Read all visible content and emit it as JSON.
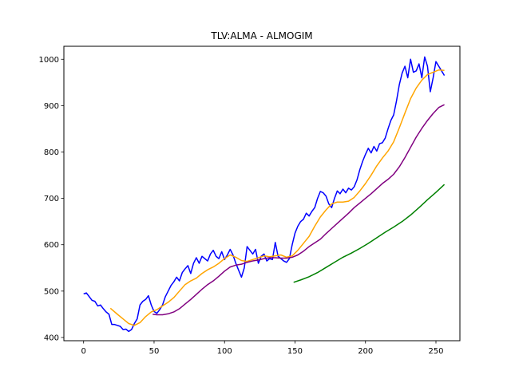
{
  "chart_data": {
    "type": "line",
    "title": "TLV:ALMA - ALMOGIM",
    "xlabel": "",
    "ylabel": "",
    "xlim": [
      -14,
      267
    ],
    "ylim": [
      393,
      1028
    ],
    "xticks": [
      0,
      50,
      100,
      150,
      200,
      250
    ],
    "yticks": [
      400,
      500,
      600,
      700,
      800,
      900,
      1000
    ],
    "grid": false,
    "legend": "none",
    "series": [
      {
        "color": "#0000ff",
        "points": [
          [
            0,
            494
          ],
          [
            2,
            496
          ],
          [
            4,
            488
          ],
          [
            6,
            480
          ],
          [
            8,
            478
          ],
          [
            10,
            468
          ],
          [
            12,
            470
          ],
          [
            14,
            462
          ],
          [
            16,
            455
          ],
          [
            18,
            450
          ],
          [
            20,
            428
          ],
          [
            22,
            428
          ],
          [
            24,
            426
          ],
          [
            26,
            424
          ],
          [
            28,
            417
          ],
          [
            30,
            418
          ],
          [
            32,
            413
          ],
          [
            34,
            417
          ],
          [
            36,
            430
          ],
          [
            38,
            440
          ],
          [
            40,
            470
          ],
          [
            42,
            478
          ],
          [
            44,
            482
          ],
          [
            46,
            490
          ],
          [
            48,
            470
          ],
          [
            50,
            456
          ],
          [
            52,
            452
          ],
          [
            54,
            460
          ],
          [
            56,
            470
          ],
          [
            58,
            488
          ],
          [
            60,
            500
          ],
          [
            62,
            512
          ],
          [
            64,
            520
          ],
          [
            66,
            530
          ],
          [
            68,
            522
          ],
          [
            70,
            540
          ],
          [
            72,
            548
          ],
          [
            74,
            555
          ],
          [
            76,
            538
          ],
          [
            78,
            560
          ],
          [
            80,
            572
          ],
          [
            82,
            560
          ],
          [
            84,
            575
          ],
          [
            86,
            570
          ],
          [
            88,
            565
          ],
          [
            90,
            580
          ],
          [
            92,
            588
          ],
          [
            94,
            575
          ],
          [
            96,
            570
          ],
          [
            98,
            585
          ],
          [
            100,
            568
          ],
          [
            102,
            578
          ],
          [
            104,
            590
          ],
          [
            106,
            578
          ],
          [
            108,
            560
          ],
          [
            110,
            545
          ],
          [
            112,
            530
          ],
          [
            114,
            550
          ],
          [
            116,
            596
          ],
          [
            118,
            588
          ],
          [
            120,
            580
          ],
          [
            122,
            590
          ],
          [
            124,
            560
          ],
          [
            126,
            575
          ],
          [
            128,
            580
          ],
          [
            130,
            565
          ],
          [
            132,
            570
          ],
          [
            134,
            568
          ],
          [
            136,
            605
          ],
          [
            138,
            575
          ],
          [
            140,
            570
          ],
          [
            142,
            565
          ],
          [
            144,
            562
          ],
          [
            146,
            570
          ],
          [
            148,
            600
          ],
          [
            150,
            625
          ],
          [
            152,
            640
          ],
          [
            154,
            650
          ],
          [
            156,
            655
          ],
          [
            158,
            668
          ],
          [
            160,
            662
          ],
          [
            162,
            672
          ],
          [
            164,
            680
          ],
          [
            166,
            700
          ],
          [
            168,
            715
          ],
          [
            170,
            712
          ],
          [
            172,
            705
          ],
          [
            174,
            688
          ],
          [
            176,
            680
          ],
          [
            178,
            700
          ],
          [
            180,
            716
          ],
          [
            182,
            710
          ],
          [
            184,
            720
          ],
          [
            186,
            712
          ],
          [
            188,
            722
          ],
          [
            190,
            718
          ],
          [
            192,
            725
          ],
          [
            194,
            740
          ],
          [
            196,
            762
          ],
          [
            198,
            780
          ],
          [
            200,
            795
          ],
          [
            202,
            808
          ],
          [
            204,
            798
          ],
          [
            206,
            812
          ],
          [
            208,
            802
          ],
          [
            210,
            818
          ],
          [
            212,
            820
          ],
          [
            214,
            830
          ],
          [
            216,
            850
          ],
          [
            218,
            868
          ],
          [
            220,
            880
          ],
          [
            222,
            910
          ],
          [
            224,
            945
          ],
          [
            226,
            970
          ],
          [
            228,
            985
          ],
          [
            230,
            960
          ],
          [
            232,
            1000
          ],
          [
            234,
            972
          ],
          [
            236,
            975
          ],
          [
            238,
            990
          ],
          [
            240,
            960
          ],
          [
            242,
            1005
          ],
          [
            244,
            985
          ],
          [
            246,
            930
          ],
          [
            248,
            960
          ],
          [
            250,
            995
          ],
          [
            252,
            985
          ],
          [
            254,
            975
          ],
          [
            256,
            965
          ]
        ]
      },
      {
        "color": "#ffa500",
        "points": [
          [
            19,
            463
          ],
          [
            24,
            450
          ],
          [
            28,
            440
          ],
          [
            32,
            430
          ],
          [
            36,
            426
          ],
          [
            40,
            432
          ],
          [
            44,
            445
          ],
          [
            48,
            455
          ],
          [
            52,
            460
          ],
          [
            56,
            468
          ],
          [
            60,
            476
          ],
          [
            64,
            486
          ],
          [
            68,
            500
          ],
          [
            72,
            514
          ],
          [
            76,
            522
          ],
          [
            80,
            528
          ],
          [
            84,
            538
          ],
          [
            88,
            546
          ],
          [
            92,
            552
          ],
          [
            96,
            560
          ],
          [
            100,
            570
          ],
          [
            104,
            578
          ],
          [
            108,
            573
          ],
          [
            112,
            566
          ],
          [
            116,
            564
          ],
          [
            120,
            568
          ],
          [
            124,
            572
          ],
          [
            128,
            576
          ],
          [
            132,
            574
          ],
          [
            136,
            576
          ],
          [
            140,
            578
          ],
          [
            144,
            573
          ],
          [
            148,
            576
          ],
          [
            152,
            588
          ],
          [
            156,
            603
          ],
          [
            160,
            618
          ],
          [
            164,
            640
          ],
          [
            168,
            660
          ],
          [
            172,
            675
          ],
          [
            176,
            688
          ],
          [
            180,
            692
          ],
          [
            184,
            692
          ],
          [
            188,
            694
          ],
          [
            192,
            702
          ],
          [
            196,
            716
          ],
          [
            200,
            732
          ],
          [
            204,
            750
          ],
          [
            208,
            770
          ],
          [
            212,
            787
          ],
          [
            216,
            802
          ],
          [
            220,
            822
          ],
          [
            224,
            852
          ],
          [
            228,
            884
          ],
          [
            232,
            915
          ],
          [
            236,
            938
          ],
          [
            240,
            955
          ],
          [
            244,
            967
          ],
          [
            248,
            972
          ],
          [
            252,
            977
          ],
          [
            256,
            976
          ]
        ]
      },
      {
        "color": "#800080",
        "points": [
          [
            49,
            450
          ],
          [
            52,
            449
          ],
          [
            56,
            449
          ],
          [
            60,
            451
          ],
          [
            64,
            455
          ],
          [
            68,
            462
          ],
          [
            72,
            472
          ],
          [
            76,
            482
          ],
          [
            80,
            493
          ],
          [
            84,
            504
          ],
          [
            88,
            514
          ],
          [
            92,
            522
          ],
          [
            96,
            532
          ],
          [
            100,
            543
          ],
          [
            104,
            552
          ],
          [
            108,
            556
          ],
          [
            112,
            558
          ],
          [
            116,
            562
          ],
          [
            120,
            565
          ],
          [
            124,
            567
          ],
          [
            128,
            570
          ],
          [
            132,
            572
          ],
          [
            136,
            572
          ],
          [
            140,
            571
          ],
          [
            144,
            571
          ],
          [
            148,
            573
          ],
          [
            152,
            578
          ],
          [
            156,
            586
          ],
          [
            160,
            596
          ],
          [
            164,
            604
          ],
          [
            168,
            612
          ],
          [
            172,
            624
          ],
          [
            176,
            635
          ],
          [
            180,
            646
          ],
          [
            184,
            657
          ],
          [
            188,
            668
          ],
          [
            192,
            680
          ],
          [
            196,
            690
          ],
          [
            200,
            700
          ],
          [
            204,
            710
          ],
          [
            208,
            721
          ],
          [
            212,
            732
          ],
          [
            216,
            741
          ],
          [
            220,
            752
          ],
          [
            224,
            768
          ],
          [
            228,
            788
          ],
          [
            232,
            810
          ],
          [
            236,
            832
          ],
          [
            240,
            851
          ],
          [
            244,
            868
          ],
          [
            248,
            883
          ],
          [
            252,
            896
          ],
          [
            256,
            902
          ]
        ]
      },
      {
        "color": "#008000",
        "points": [
          [
            149,
            519
          ],
          [
            154,
            524
          ],
          [
            160,
            531
          ],
          [
            166,
            540
          ],
          [
            172,
            551
          ],
          [
            178,
            562
          ],
          [
            184,
            573
          ],
          [
            190,
            582
          ],
          [
            196,
            592
          ],
          [
            202,
            603
          ],
          [
            208,
            615
          ],
          [
            214,
            627
          ],
          [
            220,
            638
          ],
          [
            226,
            650
          ],
          [
            232,
            664
          ],
          [
            238,
            680
          ],
          [
            244,
            697
          ],
          [
            250,
            713
          ],
          [
            256,
            730
          ]
        ]
      }
    ]
  }
}
